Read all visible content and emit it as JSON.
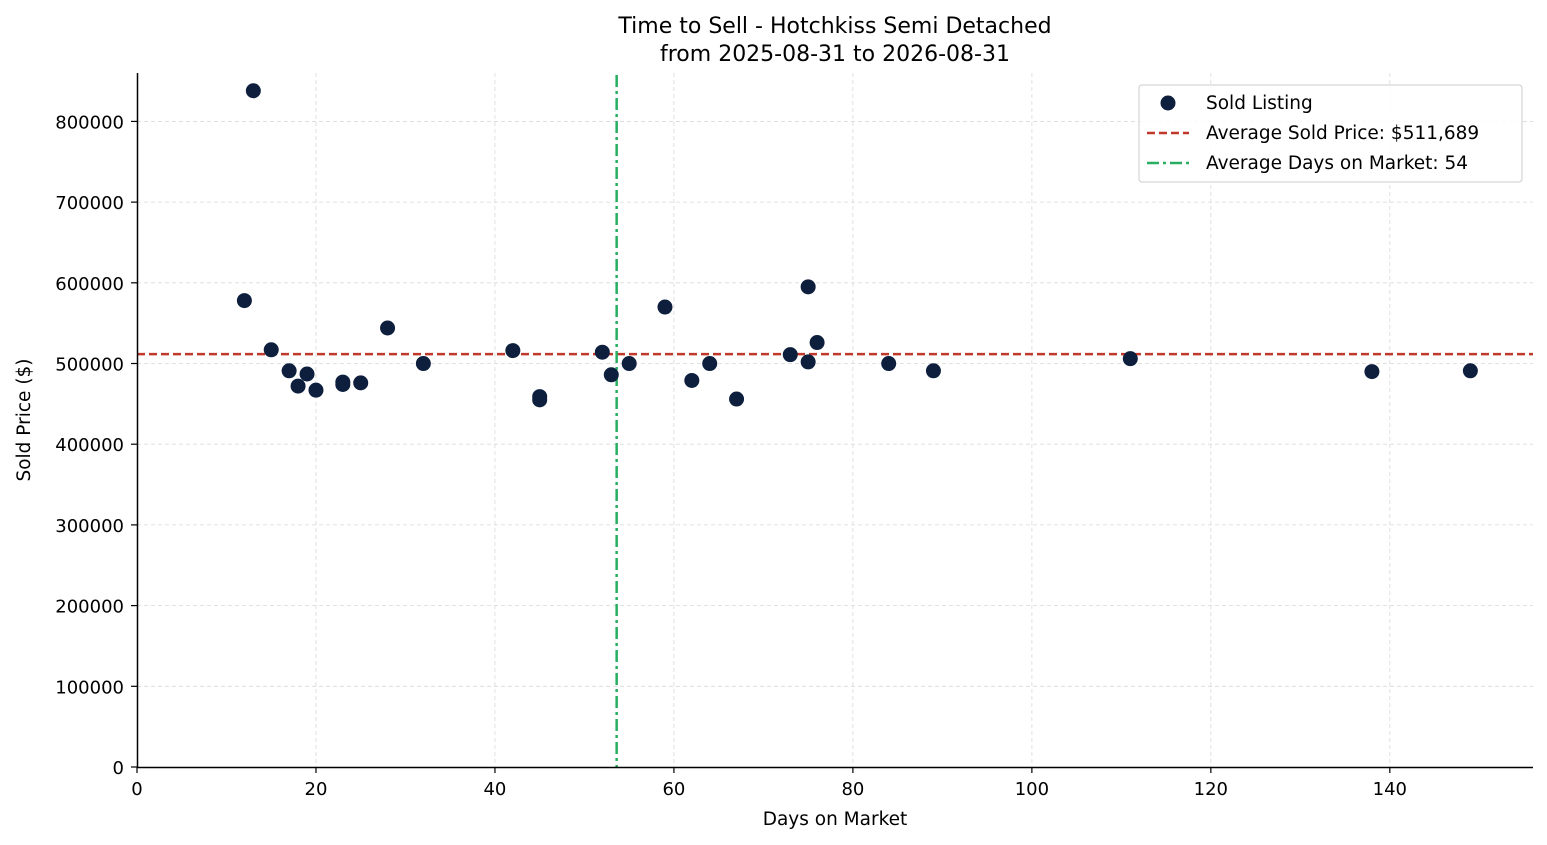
{
  "chart_data": {
    "type": "scatter",
    "title": "Time to Sell - Hotchkiss Semi Detached",
    "subtitle": "from 2025-08-31 to 2026-08-31",
    "xlabel": "Days on Market",
    "ylabel": "Sold Price ($)",
    "xlim": [
      0,
      156
    ],
    "ylim": [
      0,
      860000
    ],
    "xticks": [
      0,
      20,
      40,
      60,
      80,
      100,
      120,
      140
    ],
    "yticks": [
      0,
      100000,
      200000,
      300000,
      400000,
      500000,
      600000,
      700000,
      800000
    ],
    "grid": true,
    "legend_position": "top-right",
    "series": [
      {
        "name": "Sold Listing",
        "color": "#0d1f3c",
        "points": [
          {
            "x": 12,
            "y": 578000
          },
          {
            "x": 13,
            "y": 838000
          },
          {
            "x": 15,
            "y": 517000
          },
          {
            "x": 17,
            "y": 491000
          },
          {
            "x": 18,
            "y": 472000
          },
          {
            "x": 19,
            "y": 487000
          },
          {
            "x": 20,
            "y": 467000
          },
          {
            "x": 23,
            "y": 477000
          },
          {
            "x": 23,
            "y": 474000
          },
          {
            "x": 25,
            "y": 476000
          },
          {
            "x": 28,
            "y": 544000
          },
          {
            "x": 32,
            "y": 500000
          },
          {
            "x": 42,
            "y": 516000
          },
          {
            "x": 45,
            "y": 459000
          },
          {
            "x": 45,
            "y": 455000
          },
          {
            "x": 52,
            "y": 514000
          },
          {
            "x": 53,
            "y": 486000
          },
          {
            "x": 55,
            "y": 500000
          },
          {
            "x": 59,
            "y": 570000
          },
          {
            "x": 62,
            "y": 479000
          },
          {
            "x": 64,
            "y": 500000
          },
          {
            "x": 67,
            "y": 456000
          },
          {
            "x": 73,
            "y": 511000
          },
          {
            "x": 75,
            "y": 595000
          },
          {
            "x": 75,
            "y": 502000
          },
          {
            "x": 76,
            "y": 526000
          },
          {
            "x": 84,
            "y": 500000
          },
          {
            "x": 89,
            "y": 491000
          },
          {
            "x": 111,
            "y": 506000
          },
          {
            "x": 138,
            "y": 490000
          },
          {
            "x": 149,
            "y": 491000
          }
        ]
      }
    ],
    "reference_lines": [
      {
        "name": "Average Sold Price: $511,689",
        "orientation": "horizontal",
        "value": 511689,
        "color": "#c0392b",
        "style": "dashed"
      },
      {
        "name": "Average Days on Market: 54",
        "orientation": "vertical",
        "value": 53.6,
        "color": "#27ae60",
        "style": "dashdot"
      }
    ]
  }
}
